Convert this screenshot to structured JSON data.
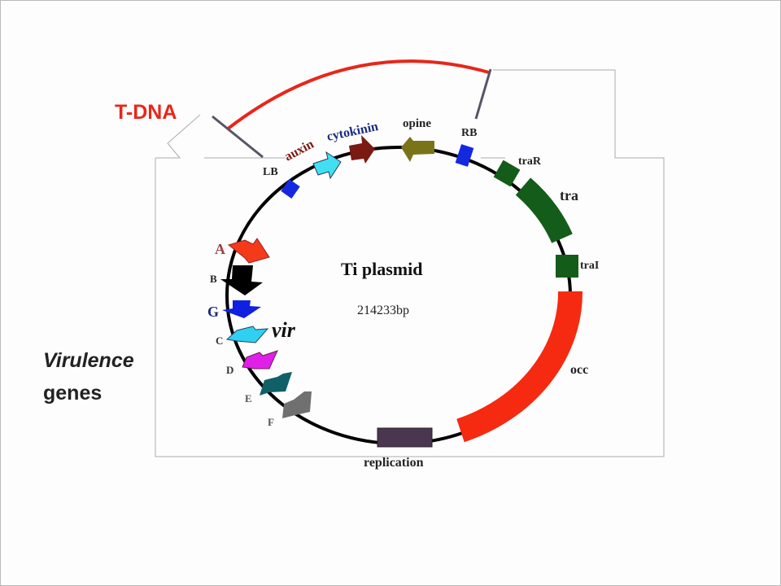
{
  "tdna_label": "T-DNA",
  "virulence_label": [
    "Virulence",
    "genes"
  ],
  "plasmid": {
    "name": "Ti plasmid",
    "size": "214233bp"
  },
  "labels": {
    "lb": "LB",
    "rb": "RB",
    "auxin": "auxin",
    "cytokinin": "cytokinin",
    "opine": "opine",
    "traR": "traR",
    "tra": "tra",
    "traI": "traI",
    "occ": "occ",
    "replication": "replication",
    "vir": "vir"
  },
  "vir_genes": [
    "A",
    "B",
    "G",
    "C",
    "D",
    "E",
    "F"
  ],
  "colors": {
    "tdna": "#e8261a",
    "border": "#1428e0",
    "auxin": "#40e0f0",
    "cytokinin": "#7a1a12",
    "opine": "#7a7418",
    "tra": "#145c1a",
    "occ": "#f52a10",
    "replication": "#4a3650",
    "virA": "#f53a1a",
    "virB": "#000000",
    "virG": "#1020e0",
    "virC": "#30d0f0",
    "virD": "#e020e8",
    "virE": "#106068",
    "virF": "#707070"
  }
}
